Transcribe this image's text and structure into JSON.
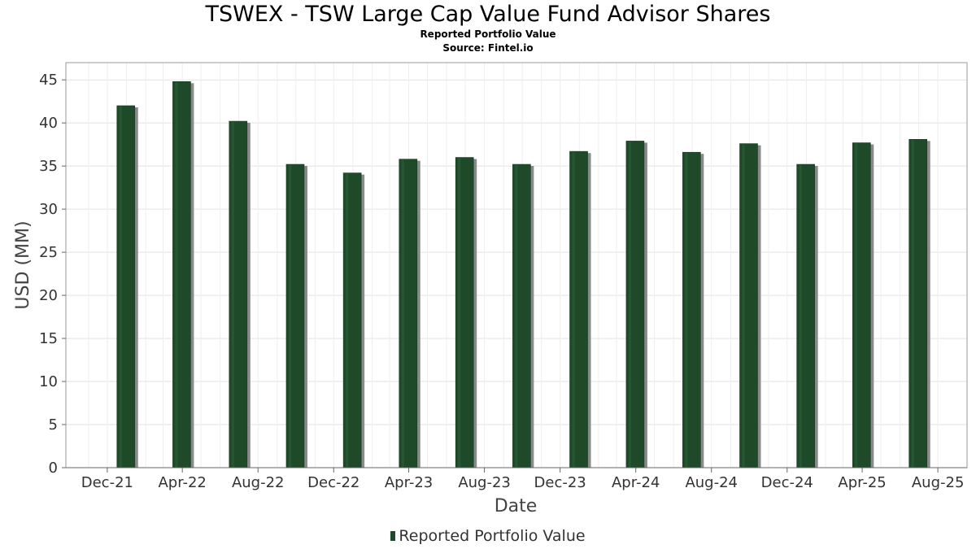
{
  "chart_data": {
    "type": "bar",
    "title": "TSWEX - TSW Large Cap Value Fund Advisor Shares",
    "subtitle_lines": [
      "Reported Portfolio Value",
      "Source: Fintel.io"
    ],
    "xlabel": "Date",
    "ylabel": "USD (MM)",
    "ylim": [
      0,
      47
    ],
    "yticks": [
      0,
      5,
      10,
      15,
      20,
      25,
      30,
      35,
      40,
      45
    ],
    "xticks": [
      "Dec-21",
      "Apr-22",
      "Aug-22",
      "Dec-22",
      "Apr-23",
      "Aug-23",
      "Dec-23",
      "Apr-24",
      "Aug-24",
      "Dec-24",
      "Apr-25",
      "Aug-25"
    ],
    "grid": true,
    "legend_position": "bottom",
    "series": [
      {
        "name": "Reported Portfolio Value",
        "color": "#1f4a2a",
        "x": [
          "2021-12-31",
          "2022-03-31",
          "2022-06-30",
          "2022-09-30",
          "2022-12-31",
          "2023-03-31",
          "2023-06-30",
          "2023-09-30",
          "2023-12-31",
          "2024-03-31",
          "2024-06-30",
          "2024-09-30",
          "2024-12-31",
          "2025-03-31",
          "2025-06-30"
        ],
        "values": [
          42.0,
          44.8,
          40.2,
          35.2,
          34.2,
          35.8,
          36.0,
          35.2,
          36.7,
          37.9,
          36.6,
          37.6,
          35.2,
          37.7,
          38.1
        ]
      }
    ]
  }
}
